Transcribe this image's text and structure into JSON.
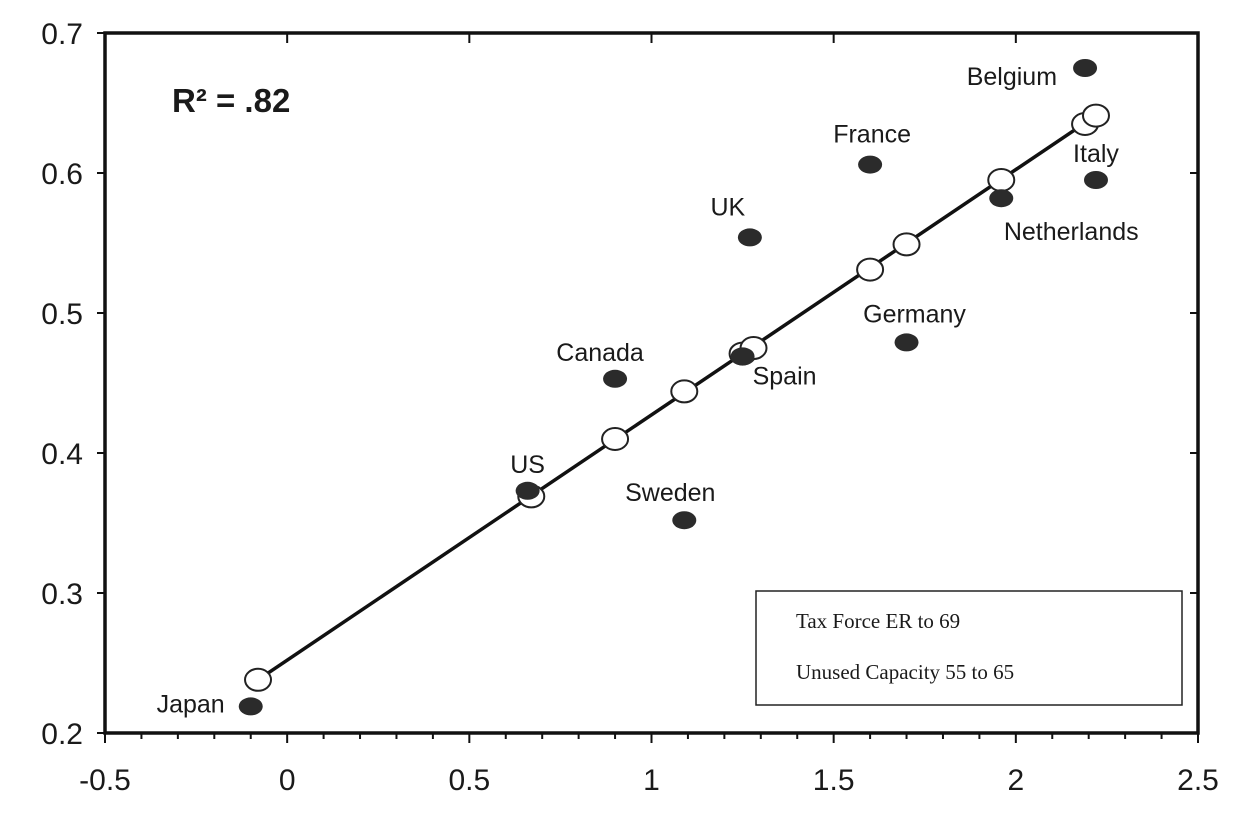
{
  "chart_data": {
    "type": "scatter",
    "title": "",
    "xlabel": "",
    "ylabel": "",
    "xlim": [
      -0.5,
      2.5
    ],
    "ylim": [
      0.2,
      0.7
    ],
    "x_ticks": [
      -0.5,
      0,
      0.5,
      1,
      1.5,
      2,
      2.5
    ],
    "x_tick_labels": [
      "-0.5",
      "0",
      "0.5",
      "1",
      "1.5",
      "2",
      "2.5"
    ],
    "y_ticks": [
      0.2,
      0.3,
      0.4,
      0.5,
      0.6,
      0.7
    ],
    "y_tick_labels": [
      "0.2",
      "0.3",
      "0.4",
      "0.5",
      "0.6",
      "0.7"
    ],
    "annotation": "R² = .82",
    "legend_lines": [
      "Tax Force ER to 69",
      "Unused Capacity 55 to 65"
    ],
    "legend_position": "bottom-right",
    "grid": false,
    "series": [
      {
        "marker": "filled-circle",
        "points": [
          {
            "label": "Japan",
            "x": -0.1,
            "y": 0.219
          },
          {
            "label": "US",
            "x": 0.66,
            "y": 0.373
          },
          {
            "label": "Sweden",
            "x": 1.09,
            "y": 0.352
          },
          {
            "label": "Canada",
            "x": 0.9,
            "y": 0.453
          },
          {
            "label": "Spain",
            "x": 1.25,
            "y": 0.469
          },
          {
            "label": "UK",
            "x": 1.27,
            "y": 0.554
          },
          {
            "label": "Germany",
            "x": 1.7,
            "y": 0.479
          },
          {
            "label": "France",
            "x": 1.6,
            "y": 0.606
          },
          {
            "label": "Netherlands",
            "x": 1.96,
            "y": 0.582
          },
          {
            "label": "Italy",
            "x": 2.22,
            "y": 0.595
          },
          {
            "label": "Belgium",
            "x": 2.19,
            "y": 0.675
          }
        ]
      },
      {
        "marker": "open-circle",
        "points": [
          {
            "x": -0.08,
            "y": 0.238
          },
          {
            "x": 0.67,
            "y": 0.369
          },
          {
            "x": 0.9,
            "y": 0.41
          },
          {
            "x": 1.09,
            "y": 0.444
          },
          {
            "x": 1.25,
            "y": 0.471
          },
          {
            "x": 1.28,
            "y": 0.475
          },
          {
            "x": 1.6,
            "y": 0.531
          },
          {
            "x": 1.7,
            "y": 0.549
          },
          {
            "x": 1.96,
            "y": 0.595
          },
          {
            "x": 2.19,
            "y": 0.635
          },
          {
            "x": 2.22,
            "y": 0.641
          }
        ]
      }
    ],
    "fit_line": {
      "x": [
        -0.08,
        2.22
      ],
      "y": [
        0.238,
        0.641
      ]
    }
  }
}
